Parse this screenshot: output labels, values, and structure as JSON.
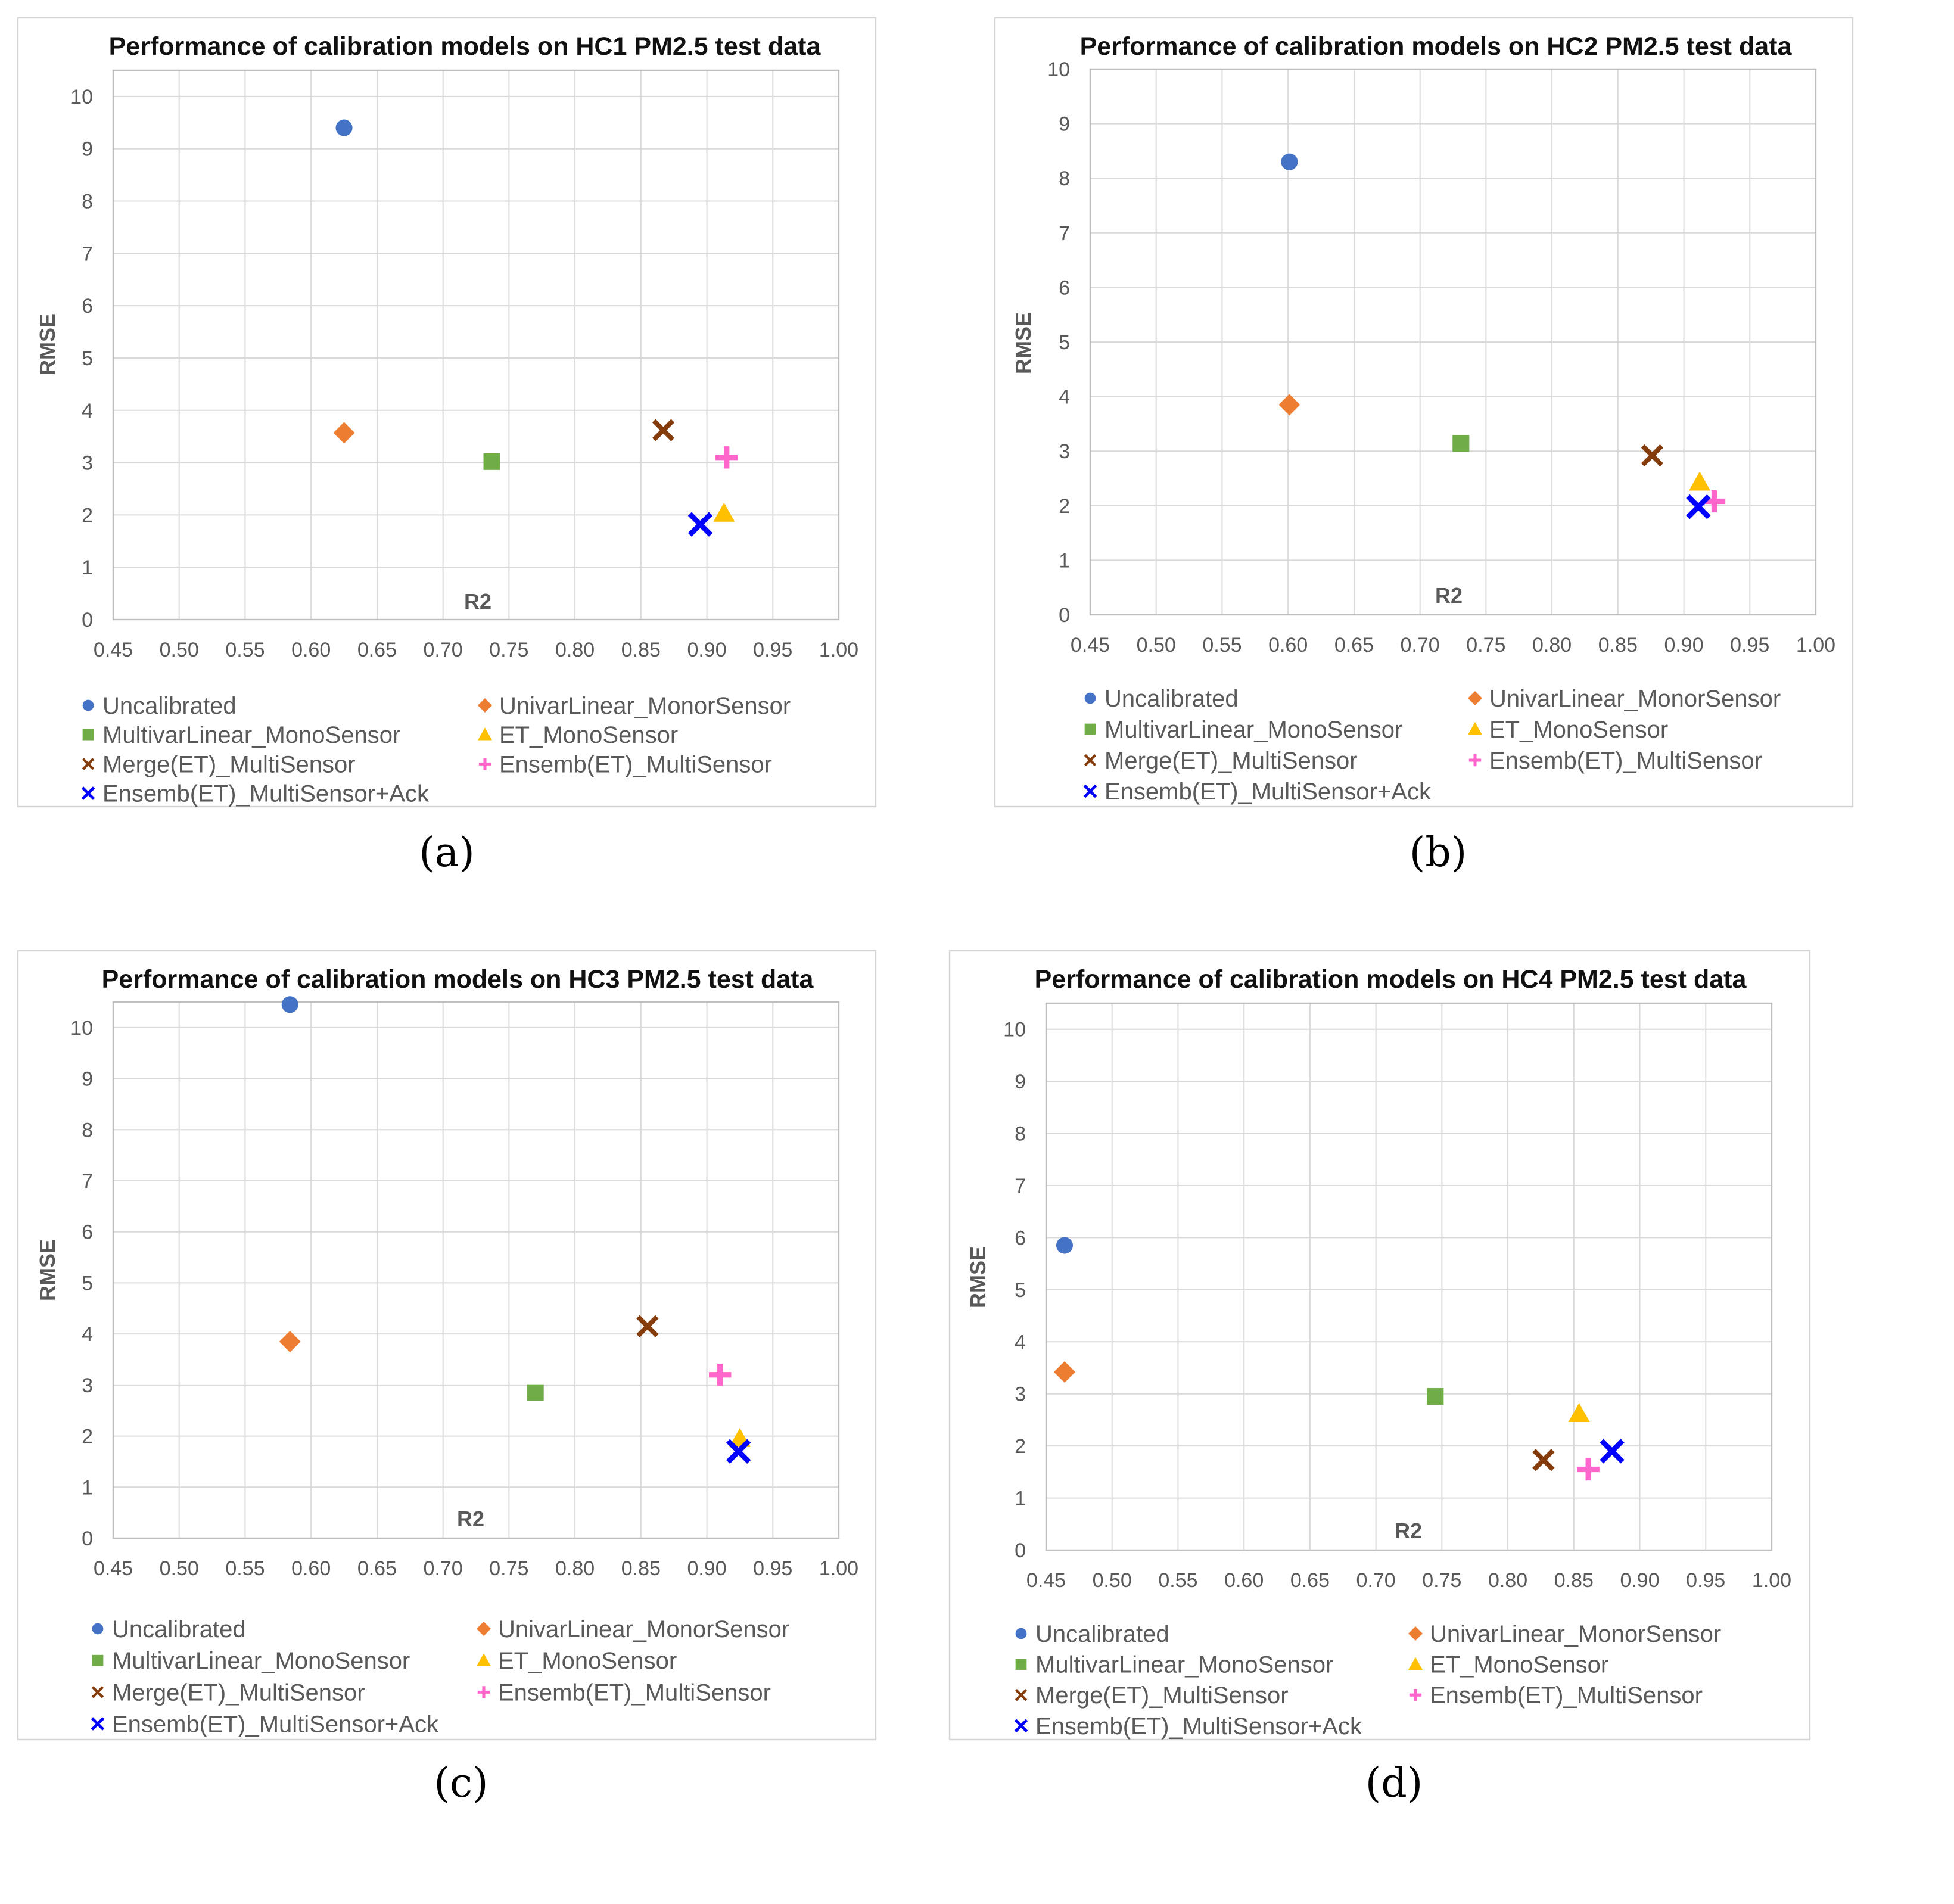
{
  "figure": {
    "captions": [
      "(a)",
      "(b)",
      "(c)",
      "(d)"
    ]
  },
  "series": [
    {
      "name": "Uncalibrated",
      "marker": "circle",
      "color": "#4472C4"
    },
    {
      "name": "UnivarLinear_MonorSensor",
      "marker": "diamond",
      "color": "#ED7D31"
    },
    {
      "name": "MultivarLinear_MonoSensor",
      "marker": "square",
      "color": "#70AD47"
    },
    {
      "name": "ET_MonoSensor",
      "marker": "triangle",
      "color": "#FFC000"
    },
    {
      "name": "Merge(ET)_MultiSensor",
      "marker": "x",
      "color": "#843C0C"
    },
    {
      "name": "Ensemb(ET)_MultiSensor",
      "marker": "plus",
      "color": "#FF66CC"
    },
    {
      "name": "Ensemb(ET)_MultiSensor+Ack",
      "marker": "bigx",
      "color": "#0000FF"
    }
  ],
  "chart_data": [
    {
      "type": "scatter",
      "title": "Performance of calibration models on HC1 PM2.5 test data",
      "xlabel": "R2",
      "ylabel": "RMSE",
      "xlim": [
        0.45,
        1.0
      ],
      "ylim": [
        0,
        10.5
      ],
      "xticks": [
        "0.45",
        "0.50",
        "0.55",
        "0.60",
        "0.65",
        "0.70",
        "0.75",
        "0.80",
        "0.85",
        "0.90",
        "0.95",
        "1.00"
      ],
      "yticks": [
        "0",
        "1",
        "2",
        "3",
        "4",
        "5",
        "6",
        "7",
        "8",
        "9",
        "10"
      ],
      "points": [
        {
          "series": "Uncalibrated",
          "x": 0.625,
          "y": 9.4
        },
        {
          "series": "UnivarLinear_MonorSensor",
          "x": 0.625,
          "y": 3.57
        },
        {
          "series": "MultivarLinear_MonoSensor",
          "x": 0.737,
          "y": 3.02
        },
        {
          "series": "ET_MonoSensor",
          "x": 0.913,
          "y": 2.03
        },
        {
          "series": "Merge(ET)_MultiSensor",
          "x": 0.867,
          "y": 3.62
        },
        {
          "series": "Ensemb(ET)_MultiSensor",
          "x": 0.915,
          "y": 3.1
        },
        {
          "series": "Ensemb(ET)_MultiSensor+Ack",
          "x": 0.895,
          "y": 1.82
        }
      ]
    },
    {
      "type": "scatter",
      "title": "Performance of calibration models on HC2 PM2.5 test data",
      "xlabel": "R2",
      "ylabel": "RMSE",
      "xlim": [
        0.45,
        1.0
      ],
      "ylim": [
        0,
        10
      ],
      "xticks": [
        "0.45",
        "0.50",
        "0.55",
        "0.60",
        "0.65",
        "0.70",
        "0.75",
        "0.80",
        "0.85",
        "0.90",
        "0.95",
        "1.00"
      ],
      "yticks": [
        "0",
        "1",
        "2",
        "3",
        "4",
        "5",
        "6",
        "7",
        "8",
        "9",
        "10"
      ],
      "points": [
        {
          "series": "Uncalibrated",
          "x": 0.601,
          "y": 8.3
        },
        {
          "series": "UnivarLinear_MonorSensor",
          "x": 0.601,
          "y": 3.85
        },
        {
          "series": "MultivarLinear_MonoSensor",
          "x": 0.731,
          "y": 3.14
        },
        {
          "series": "ET_MonoSensor",
          "x": 0.912,
          "y": 2.43
        },
        {
          "series": "Merge(ET)_MultiSensor",
          "x": 0.876,
          "y": 2.92
        },
        {
          "series": "Ensemb(ET)_MultiSensor",
          "x": 0.923,
          "y": 2.08
        },
        {
          "series": "Ensemb(ET)_MultiSensor+Ack",
          "x": 0.911,
          "y": 1.98
        }
      ]
    },
    {
      "type": "scatter",
      "title": "Performance of calibration models on HC3 PM2.5 test data",
      "xlabel": "R2",
      "ylabel": "RMSE",
      "xlim": [
        0.45,
        1.0
      ],
      "ylim": [
        0,
        10.5
      ],
      "xticks": [
        "0.45",
        "0.50",
        "0.55",
        "0.60",
        "0.65",
        "0.70",
        "0.75",
        "0.80",
        "0.85",
        "0.90",
        "0.95",
        "1.00"
      ],
      "yticks": [
        "0",
        "1",
        "2",
        "3",
        "4",
        "5",
        "6",
        "7",
        "8",
        "9",
        "10"
      ],
      "points": [
        {
          "series": "Uncalibrated",
          "x": 0.584,
          "y": 10.45
        },
        {
          "series": "UnivarLinear_MonorSensor",
          "x": 0.584,
          "y": 3.85
        },
        {
          "series": "MultivarLinear_MonoSensor",
          "x": 0.77,
          "y": 2.85
        },
        {
          "series": "ET_MonoSensor",
          "x": 0.925,
          "y": 1.95
        },
        {
          "series": "Merge(ET)_MultiSensor",
          "x": 0.855,
          "y": 4.15
        },
        {
          "series": "Ensemb(ET)_MultiSensor",
          "x": 0.91,
          "y": 3.2
        },
        {
          "series": "Ensemb(ET)_MultiSensor+Ack",
          "x": 0.924,
          "y": 1.7
        }
      ]
    },
    {
      "type": "scatter",
      "title": "Performance of calibration models on HC4 PM2.5 test data",
      "xlabel": "R2",
      "ylabel": "RMSE",
      "xlim": [
        0.45,
        1.0
      ],
      "ylim": [
        0,
        10.5
      ],
      "xticks": [
        "0.45",
        "0.50",
        "0.55",
        "0.60",
        "0.65",
        "0.70",
        "0.75",
        "0.80",
        "0.85",
        "0.90",
        "0.95",
        "1.00"
      ],
      "yticks": [
        "0",
        "1",
        "2",
        "3",
        "4",
        "5",
        "6",
        "7",
        "8",
        "9",
        "10"
      ],
      "points": [
        {
          "series": "Uncalibrated",
          "x": 0.464,
          "y": 5.85
        },
        {
          "series": "UnivarLinear_MonorSensor",
          "x": 0.464,
          "y": 3.42
        },
        {
          "series": "MultivarLinear_MonoSensor",
          "x": 0.745,
          "y": 2.95
        },
        {
          "series": "ET_MonoSensor",
          "x": 0.854,
          "y": 2.62
        },
        {
          "series": "Merge(ET)_MultiSensor",
          "x": 0.827,
          "y": 1.73
        },
        {
          "series": "Ensemb(ET)_MultiSensor",
          "x": 0.861,
          "y": 1.55
        },
        {
          "series": "Ensemb(ET)_MultiSensor+Ack",
          "x": 0.879,
          "y": 1.9
        }
      ]
    }
  ]
}
